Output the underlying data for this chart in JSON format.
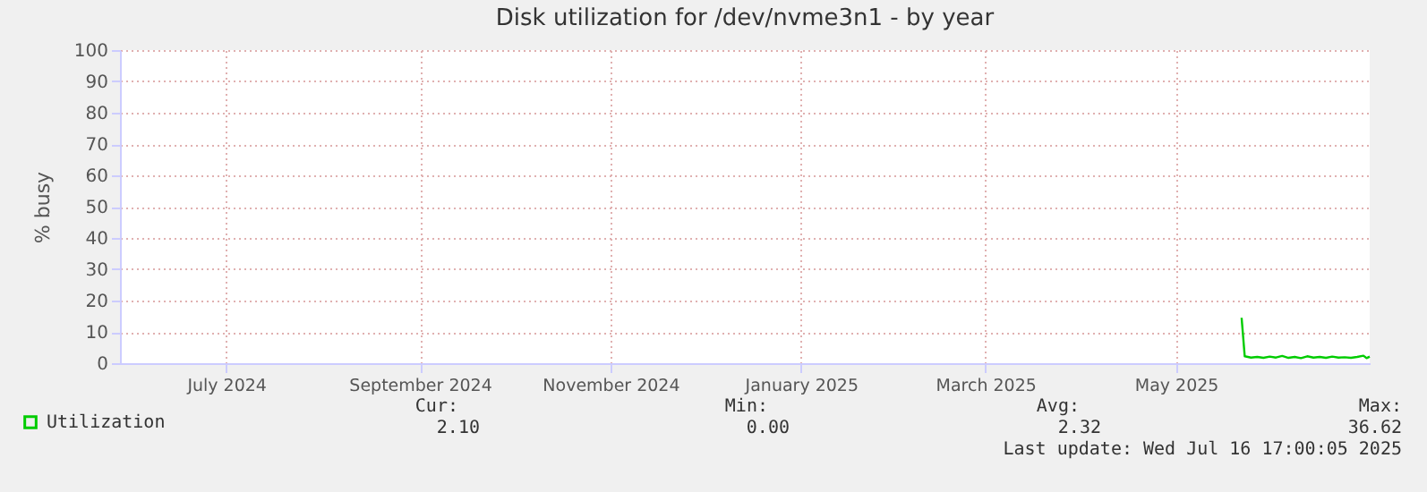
{
  "chart_data": {
    "type": "line",
    "title": "Disk utilization for /dev/nvme3n1 - by year",
    "ylabel": "% busy",
    "x": [
      "2025-06-05",
      "2025-06-06",
      "2025-06-08",
      "2025-06-10",
      "2025-06-12",
      "2025-06-14",
      "2025-06-16",
      "2025-06-18",
      "2025-06-20",
      "2025-06-22",
      "2025-06-24",
      "2025-06-26",
      "2025-06-28",
      "2025-06-30",
      "2025-07-02",
      "2025-07-04",
      "2025-07-06",
      "2025-07-08",
      "2025-07-10",
      "2025-07-12",
      "2025-07-14",
      "2025-07-15",
      "2025-07-16"
    ],
    "series": [
      {
        "name": "Utilization",
        "color": "#00cc00",
        "values": [
          14.5,
          2.2,
          1.8,
          2.0,
          1.7,
          2.1,
          1.8,
          2.3,
          1.7,
          2.0,
          1.6,
          2.2,
          1.8,
          2.0,
          1.7,
          2.1,
          1.8,
          1.9,
          1.7,
          2.0,
          2.4,
          1.6,
          2.1
        ]
      }
    ],
    "xlim": [
      "2024-06-11",
      "2025-07-16"
    ],
    "xticks": [
      {
        "value": "2024-07-15",
        "label": "July 2024"
      },
      {
        "value": "2024-09-15",
        "label": "September 2024"
      },
      {
        "value": "2024-11-15",
        "label": "November 2024"
      },
      {
        "value": "2025-01-15",
        "label": "January 2025"
      },
      {
        "value": "2025-03-15",
        "label": "March 2025"
      },
      {
        "value": "2025-05-15",
        "label": "May 2025"
      }
    ],
    "ylim": [
      0,
      100
    ],
    "yticks": [
      0,
      10,
      20,
      30,
      40,
      50,
      60,
      70,
      80,
      90,
      100
    ],
    "grid": true,
    "legend": "bottom left",
    "marker": "none",
    "line_style": "solid",
    "annotations": [
      "Cur:",
      "2.10",
      "Min:",
      "0.00",
      "Avg:",
      "2.32",
      "Max:",
      "36.62",
      "Last update: Wed Jul 16 17:00:05 2025"
    ]
  }
}
